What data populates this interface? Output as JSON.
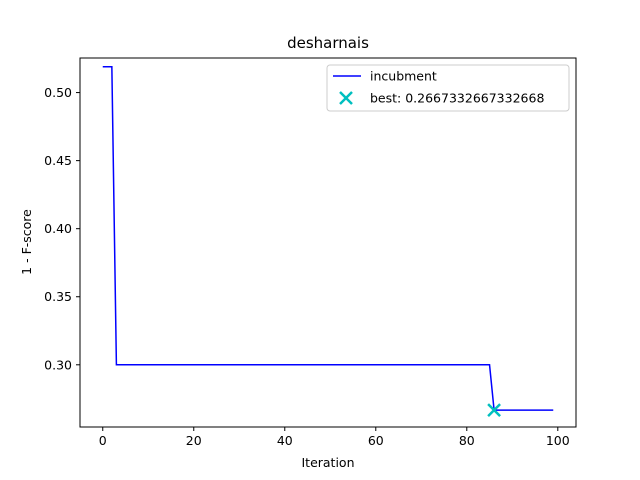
{
  "chart_data": {
    "type": "line",
    "title": "desharnais",
    "xlabel": "Iteration",
    "ylabel": "1 - F-score",
    "xlim": [
      -5,
      104
    ],
    "ylim": [
      0.2543,
      0.5254
    ],
    "xticks": [
      0,
      20,
      40,
      60,
      80,
      100
    ],
    "yticks": [
      0.3,
      0.35,
      0.4,
      0.45,
      0.5
    ],
    "xtick_labels": [
      "0",
      "20",
      "40",
      "60",
      "80",
      "100"
    ],
    "ytick_labels": [
      "0.30",
      "0.35",
      "0.40",
      "0.45",
      "0.50"
    ],
    "grid": false,
    "legend_position": "top-right",
    "series": [
      {
        "name": "incubment",
        "color": "#0000ff",
        "x": [
          0,
          2,
          3,
          85,
          86,
          99
        ],
        "y": [
          0.519,
          0.519,
          0.3,
          0.3,
          0.2667332667332668,
          0.2667332667332668
        ]
      }
    ],
    "markers": [
      {
        "name": "best: 0.2667332667332668",
        "color": "#00bfbf",
        "shape": "x",
        "x": 86,
        "y": 0.2667332667332668
      }
    ]
  }
}
